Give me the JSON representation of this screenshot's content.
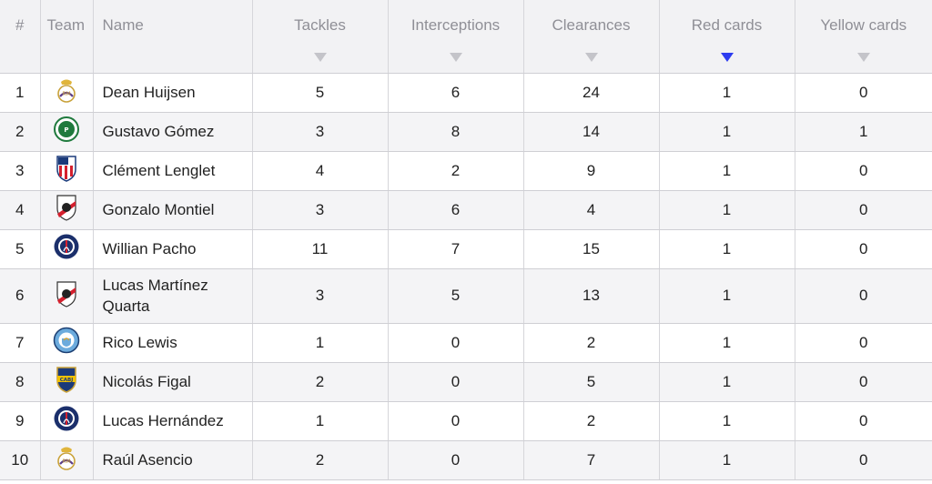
{
  "table": {
    "headers": {
      "rank": "#",
      "team": "Team",
      "name": "Name",
      "tackles": "Tackles",
      "interceptions": "Interceptions",
      "clearances": "Clearances",
      "red_cards": "Red cards",
      "yellow_cards": "Yellow cards"
    },
    "active_sort_column": "red_cards",
    "colors": {
      "active_sort": "#2d3cf0",
      "inactive_sort": "#c4c4c9"
    },
    "rows": [
      {
        "rank": "1",
        "team_icon": "real-madrid-crest-icon",
        "name": "Dean Huijsen",
        "tackles": "5",
        "interceptions": "6",
        "clearances": "24",
        "red_cards": "1",
        "yellow_cards": "0"
      },
      {
        "rank": "2",
        "team_icon": "palmeiras-crest-icon",
        "name": "Gustavo Gómez",
        "tackles": "3",
        "interceptions": "8",
        "clearances": "14",
        "red_cards": "1",
        "yellow_cards": "1"
      },
      {
        "rank": "3",
        "team_icon": "atletico-madrid-crest-icon",
        "name": "Clément Lenglet",
        "tackles": "4",
        "interceptions": "2",
        "clearances": "9",
        "red_cards": "1",
        "yellow_cards": "0"
      },
      {
        "rank": "4",
        "team_icon": "river-plate-crest-icon",
        "name": "Gonzalo Montiel",
        "tackles": "3",
        "interceptions": "6",
        "clearances": "4",
        "red_cards": "1",
        "yellow_cards": "0"
      },
      {
        "rank": "5",
        "team_icon": "psg-crest-icon",
        "name": "Willian Pacho",
        "tackles": "11",
        "interceptions": "7",
        "clearances": "15",
        "red_cards": "1",
        "yellow_cards": "0"
      },
      {
        "rank": "6",
        "team_icon": "river-plate-crest-icon",
        "name": "Lucas Martínez Quarta",
        "tackles": "3",
        "interceptions": "5",
        "clearances": "13",
        "red_cards": "1",
        "yellow_cards": "0"
      },
      {
        "rank": "7",
        "team_icon": "manchester-city-crest-icon",
        "name": "Rico Lewis",
        "tackles": "1",
        "interceptions": "0",
        "clearances": "2",
        "red_cards": "1",
        "yellow_cards": "0"
      },
      {
        "rank": "8",
        "team_icon": "boca-juniors-crest-icon",
        "name": "Nicolás Figal",
        "tackles": "2",
        "interceptions": "0",
        "clearances": "5",
        "red_cards": "1",
        "yellow_cards": "0"
      },
      {
        "rank": "9",
        "team_icon": "psg-crest-icon",
        "name": "Lucas Hernández",
        "tackles": "1",
        "interceptions": "0",
        "clearances": "2",
        "red_cards": "1",
        "yellow_cards": "0"
      },
      {
        "rank": "10",
        "team_icon": "real-madrid-crest-icon",
        "name": "Raúl Asencio",
        "tackles": "2",
        "interceptions": "0",
        "clearances": "7",
        "red_cards": "1",
        "yellow_cards": "0"
      }
    ]
  }
}
